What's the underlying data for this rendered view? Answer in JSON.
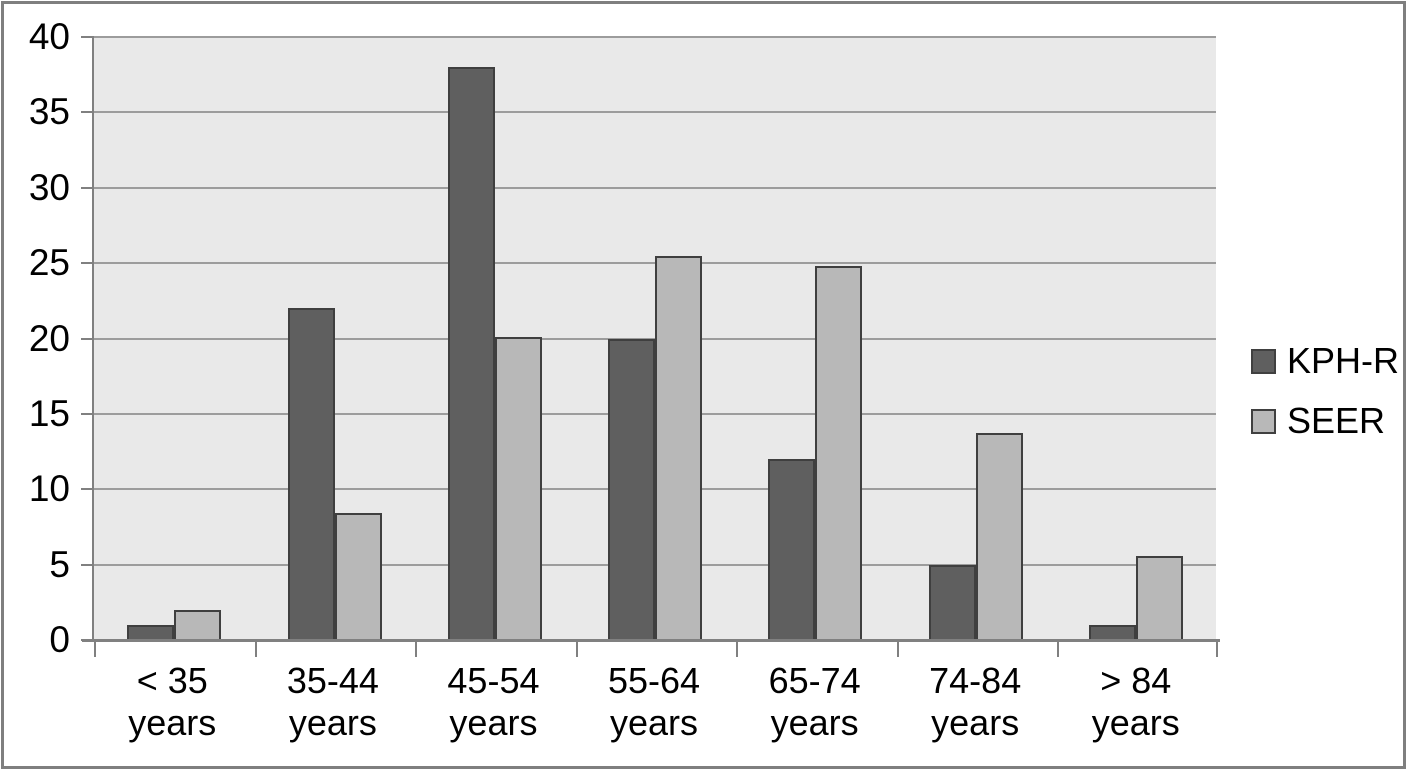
{
  "chart_data": {
    "type": "bar",
    "title": "",
    "categories": [
      "< 35 years",
      "35-44 years",
      "45-54 years",
      "55-64 years",
      "65-74 years",
      "74-84 years",
      "> 84 years"
    ],
    "categories_lines": [
      [
        "< 35",
        "years"
      ],
      [
        "35-44",
        "years"
      ],
      [
        "45-54",
        "years"
      ],
      [
        "55-64",
        "years"
      ],
      [
        "65-74",
        "years"
      ],
      [
        "74-84",
        "years"
      ],
      [
        "> 84",
        "years"
      ]
    ],
    "series": [
      {
        "name": "KPH-R",
        "color": "#5f5f5f",
        "border_color": "#3f3f3f",
        "values": [
          1,
          22,
          38,
          20,
          12,
          5,
          1
        ]
      },
      {
        "name": "SEER",
        "color": "#b8b8b8",
        "border_color": "#3f3f3f",
        "values": [
          2,
          8.4,
          20.1,
          25.5,
          24.8,
          13.7,
          5.6
        ]
      }
    ],
    "ylim": [
      0,
      40
    ],
    "ytick_step": 5,
    "yticks": [
      0,
      5,
      10,
      15,
      20,
      25,
      30,
      35,
      40
    ],
    "xlabel": "",
    "ylabel": "",
    "grid": "horizontal",
    "legend_position": "right",
    "colors": {
      "plot_background": "#e9e9e9",
      "gridline": "#9c9c9c",
      "axis": "#808080",
      "frame_border": "#7f7f7f",
      "text": "#000000"
    }
  }
}
